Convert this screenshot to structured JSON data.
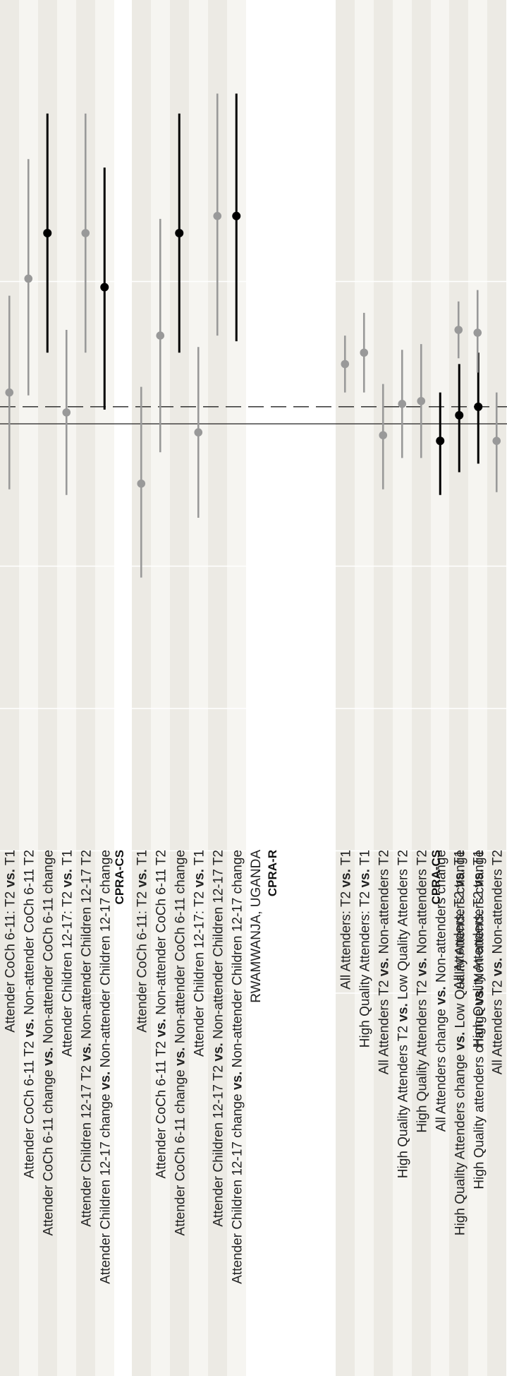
{
  "colors": {
    "band_dark": "#eceae4",
    "band_light": "#f6f5f1",
    "gap": "#ffffff",
    "grid": "#ffffff",
    "muted": "#999999",
    "highlight": "#000000",
    "ref_line": "#222222"
  },
  "chart_data": {
    "type": "forest",
    "orientation": "rotated-90",
    "xlim": [
      -2.25,
      1.2
    ],
    "grid_values": [
      -2.0,
      -1.5,
      -1.0,
      -0.5,
      0.5
    ],
    "reference_lines": [
      {
        "value": 0.0,
        "style": "solid"
      },
      {
        "value": 0.06,
        "style": "dashed"
      }
    ],
    "panels": [
      {
        "title": "",
        "rows": [
          {
            "label_pre": "Attender CoCh 6-11: T2 ",
            "label_vs": "vs.",
            "label_post": " T1",
            "estimate": 0.11,
            "ci": [
              -0.23,
              0.45
            ],
            "highlight": false
          },
          {
            "label_pre": "Attender CoCh 6-11 T2 ",
            "label_vs": "vs.",
            "label_post": " Non-attender CoCh 6-11 T2",
            "estimate": 0.51,
            "ci": [
              0.1,
              0.93
            ],
            "highlight": false
          },
          {
            "label_pre": "Attender CoCh 6-11 change ",
            "label_vs": "vs.",
            "label_post": " Non-attender CoCh 6-11 change",
            "estimate": 0.67,
            "ci": [
              0.25,
              1.09
            ],
            "highlight": true
          },
          {
            "label_pre": "Attender Children 12-17: T2 ",
            "label_vs": "vs.",
            "label_post": " T1",
            "estimate": 0.04,
            "ci": [
              -0.25,
              0.33
            ],
            "highlight": false
          },
          {
            "label_pre": "Attender Children 12-17 T2 ",
            "label_vs": "vs.",
            "label_post": " Non-attender Children 12-17 T2",
            "estimate": 0.67,
            "ci": [
              0.25,
              1.09
            ],
            "highlight": false
          },
          {
            "label_pre": "Attender Children 12-17 change ",
            "label_vs": "vs.",
            "label_post": " Non-attender Children 12-17 change",
            "estimate": 0.48,
            "ci": [
              0.05,
              0.9
            ],
            "highlight": true
          }
        ]
      },
      {
        "title": "CPRA-CS",
        "rows": [
          {
            "label_pre": "Attender CoCh 6-11: T2 ",
            "label_vs": "vs.",
            "label_post": " T1",
            "estimate": -0.21,
            "ci": [
              -0.54,
              0.13
            ],
            "highlight": false
          },
          {
            "label_pre": "Attender CoCh 6-11 T2 ",
            "label_vs": "vs.",
            "label_post": " Non-attender CoCh 6-11 T2",
            "estimate": 0.31,
            "ci": [
              -0.1,
              0.72
            ],
            "highlight": false
          },
          {
            "label_pre": "Attender CoCh 6-11 change ",
            "label_vs": "vs.",
            "label_post": " Non-attender CoCh 6-11 change",
            "estimate": 0.67,
            "ci": [
              0.25,
              1.09
            ],
            "highlight": true
          },
          {
            "label_pre": "Attender Children 12-17: T2 ",
            "label_vs": "vs.",
            "label_post": " T1",
            "estimate": -0.03,
            "ci": [
              -0.33,
              0.27
            ],
            "highlight": false
          },
          {
            "label_pre": "Attender Children 12-17 T2 ",
            "label_vs": "vs.",
            "label_post": " Non-attender Children 12-17 T2",
            "estimate": 0.73,
            "ci": [
              0.31,
              1.16
            ],
            "highlight": false
          },
          {
            "label_pre": "Attender Children 12-17 change ",
            "label_vs": "vs.",
            "label_post": " Non-attender Children 12-17 change",
            "estimate": 0.73,
            "ci": [
              0.29,
              1.16
            ],
            "highlight": true
          }
        ]
      },
      {
        "title": "RWAMWANJA, UGANDA",
        "subtitle": "CPRA-R",
        "rows": [
          {
            "label_pre": "All Attenders: T2 ",
            "label_vs": "vs.",
            "label_post": " T1",
            "estimate": 0.21,
            "ci": [
              0.11,
              0.31
            ],
            "highlight": false
          },
          {
            "label_pre": "High Quality Attenders: T2 ",
            "label_vs": "vs.",
            "label_post": " T1",
            "estimate": 0.25,
            "ci": [
              0.11,
              0.39
            ],
            "highlight": false
          },
          {
            "label_pre": "All Attenders T2 ",
            "label_vs": "vs.",
            "label_post": " Non-attenders T2",
            "estimate": -0.04,
            "ci": [
              -0.23,
              0.14
            ],
            "highlight": false
          },
          {
            "label_pre": "High Quality Attenders T2 ",
            "label_vs": "vs.",
            "label_post": "  Low Quality Attenders T2",
            "estimate": 0.07,
            "ci": [
              -0.12,
              0.26
            ],
            "highlight": false
          },
          {
            "label_pre": "High Quality Attenders T2 ",
            "label_vs": "vs.",
            "label_post": " Non-attenders T2",
            "estimate": 0.08,
            "ci": [
              -0.12,
              0.28
            ],
            "highlight": false
          },
          {
            "label_pre": "All Attenders change ",
            "label_vs": "vs.",
            "label_post": " Non-attenders change",
            "estimate": -0.06,
            "ci": [
              -0.25,
              0.11
            ],
            "highlight": true
          },
          {
            "label_pre": "High Quality Attenders change ",
            "label_vs": "vs.",
            "label_post": " Low Quality Attenders change",
            "estimate": 0.03,
            "ci": [
              -0.17,
              0.21
            ],
            "highlight": true
          },
          {
            "label_pre": "High Quality attenders change ",
            "label_vs": "vs.",
            "label_post": " Non-attenders change",
            "estimate": 0.06,
            "ci": [
              -0.14,
              0.25
            ],
            "highlight": true
          }
        ]
      },
      {
        "title": "CPRA-CS",
        "rows": [
          {
            "label_pre": "All Attenders: T2 ",
            "label_vs": "vs.",
            "label_post": " T1",
            "estimate": 0.33,
            "ci": [
              0.23,
              0.43
            ],
            "highlight": false
          },
          {
            "label_pre": "High Quality Attenders: T2 ",
            "label_vs": "vs.",
            "label_post": " T1",
            "estimate": 0.32,
            "ci": [
              0.18,
              0.47
            ],
            "highlight": false
          },
          {
            "label_pre": "All Attenders T2 ",
            "label_vs": "vs.",
            "label_post": " Non-attenders T2",
            "estimate": -0.06,
            "ci": [
              -0.24,
              0.11
            ],
            "highlight": false
          }
        ]
      }
    ]
  }
}
